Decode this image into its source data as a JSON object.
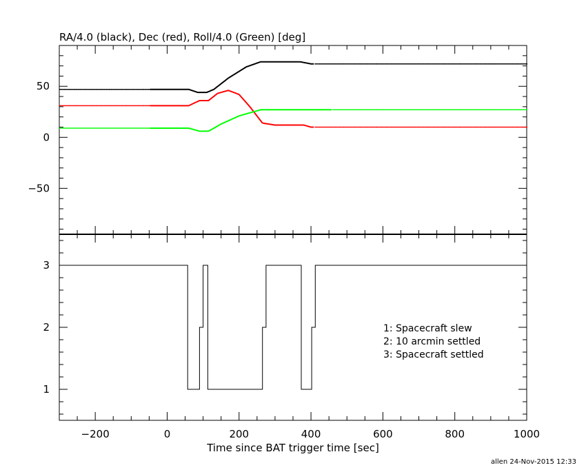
{
  "chart_data": [
    {
      "type": "line",
      "title": "RA/4.0 (black), Dec (red), Roll/4.0 (Green) [deg]",
      "ylim": [
        -95,
        90
      ],
      "xlim": [
        -300,
        1000
      ],
      "yticks": [
        50,
        0,
        -50
      ],
      "grid": false,
      "series": [
        {
          "color": "#000000",
          "points": [
            [
              -300,
              47
            ],
            [
              -50,
              47
            ],
            [
              60,
              47
            ],
            [
              85,
              44
            ],
            [
              110,
              44
            ],
            [
              130,
              47
            ],
            [
              170,
              58
            ],
            [
              220,
              69
            ],
            [
              260,
              74
            ],
            [
              370,
              74
            ],
            [
              400,
              72
            ],
            [
              1000,
              72
            ]
          ],
          "dotted_ranges": [
            [
              -300,
              -50
            ],
            [
              410,
              1000
            ]
          ]
        },
        {
          "color": "#ff0000",
          "points": [
            [
              -300,
              31
            ],
            [
              -50,
              31
            ],
            [
              60,
              31
            ],
            [
              90,
              36
            ],
            [
              115,
              36
            ],
            [
              140,
              43
            ],
            [
              170,
              46
            ],
            [
              200,
              42
            ],
            [
              230,
              30
            ],
            [
              265,
              14
            ],
            [
              300,
              12
            ],
            [
              380,
              12
            ],
            [
              400,
              10
            ],
            [
              1000,
              10
            ]
          ],
          "dotted_ranges": [
            [
              -300,
              -50
            ],
            [
              410,
              1000
            ]
          ]
        },
        {
          "color": "#00ff00",
          "points": [
            [
              -300,
              9
            ],
            [
              -50,
              9
            ],
            [
              60,
              9
            ],
            [
              90,
              6
            ],
            [
              115,
              6
            ],
            [
              150,
              13
            ],
            [
              200,
              21
            ],
            [
              260,
              27
            ],
            [
              300,
              27
            ],
            [
              460,
              27
            ],
            [
              1000,
              27
            ]
          ],
          "dotted_ranges": [
            [
              -300,
              -50
            ],
            [
              460,
              1000
            ]
          ]
        }
      ]
    },
    {
      "type": "line",
      "xlabel": "Time since BAT trigger time [sec]",
      "xlim": [
        -300,
        1000
      ],
      "ylim": [
        0.5,
        3.5
      ],
      "xticks": [
        -200,
        0,
        200,
        400,
        600,
        800,
        1000
      ],
      "yticks": [
        3,
        2,
        1
      ],
      "grid": false,
      "legend": [
        "1: Spacecraft slew",
        "2: 10 arcmin settled",
        "3: Spacecraft settled"
      ],
      "legend_position": "right",
      "series": [
        {
          "color": "#000000",
          "step": true,
          "x": [
            -300,
            57,
            57,
            90,
            90,
            100,
            100,
            113,
            113,
            265,
            265,
            275,
            275,
            373,
            373,
            402,
            402,
            412,
            412,
            1000
          ],
          "y": [
            3,
            3,
            1,
            1,
            2,
            2,
            3,
            3,
            1,
            1,
            2,
            2,
            3,
            3,
            1,
            1,
            2,
            2,
            3,
            3
          ]
        }
      ]
    }
  ],
  "footer": "allen 24-Nov-2015 12:33"
}
